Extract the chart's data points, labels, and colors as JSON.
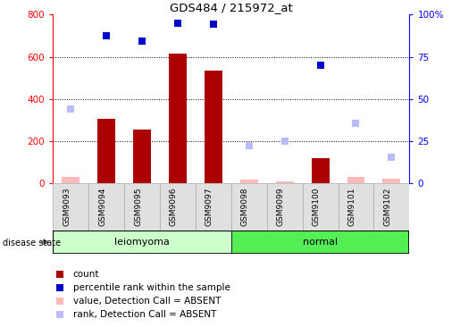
{
  "title": "GDS484 / 215972_at",
  "samples": [
    "GSM9093",
    "GSM9094",
    "GSM9095",
    "GSM9096",
    "GSM9097",
    "GSM9098",
    "GSM9099",
    "GSM9100",
    "GSM9101",
    "GSM9102"
  ],
  "bar_values": [
    0,
    305,
    255,
    615,
    535,
    0,
    0,
    120,
    0,
    0
  ],
  "bar_absent_values": [
    30,
    0,
    0,
    0,
    0,
    15,
    10,
    0,
    30,
    20
  ],
  "rank_values": [
    null,
    700,
    675,
    760,
    755,
    null,
    null,
    558,
    null,
    null
  ],
  "rank_absent_values": [
    350,
    null,
    null,
    null,
    null,
    180,
    200,
    null,
    285,
    125
  ],
  "ylim": [
    0,
    800
  ],
  "yticks_left": [
    0,
    200,
    400,
    600,
    800
  ],
  "ytick_labels_right": [
    "0",
    "25",
    "50",
    "75",
    "100%"
  ],
  "bar_color": "#aa0000",
  "bar_absent_color": "#ffbbbb",
  "rank_color": "#0000cc",
  "rank_absent_color": "#bbbbff",
  "groups": [
    {
      "label": "leiomyoma",
      "start": 0,
      "end": 5,
      "color": "#ccffcc"
    },
    {
      "label": "normal",
      "start": 5,
      "end": 10,
      "color": "#55ee55"
    }
  ],
  "disease_state_label": "disease state",
  "legend_items": [
    {
      "label": "count",
      "color": "#aa0000"
    },
    {
      "label": "percentile rank within the sample",
      "color": "#0000cc"
    },
    {
      "label": "value, Detection Call = ABSENT",
      "color": "#ffbbbb"
    },
    {
      "label": "rank, Detection Call = ABSENT",
      "color": "#bbbbff"
    }
  ]
}
